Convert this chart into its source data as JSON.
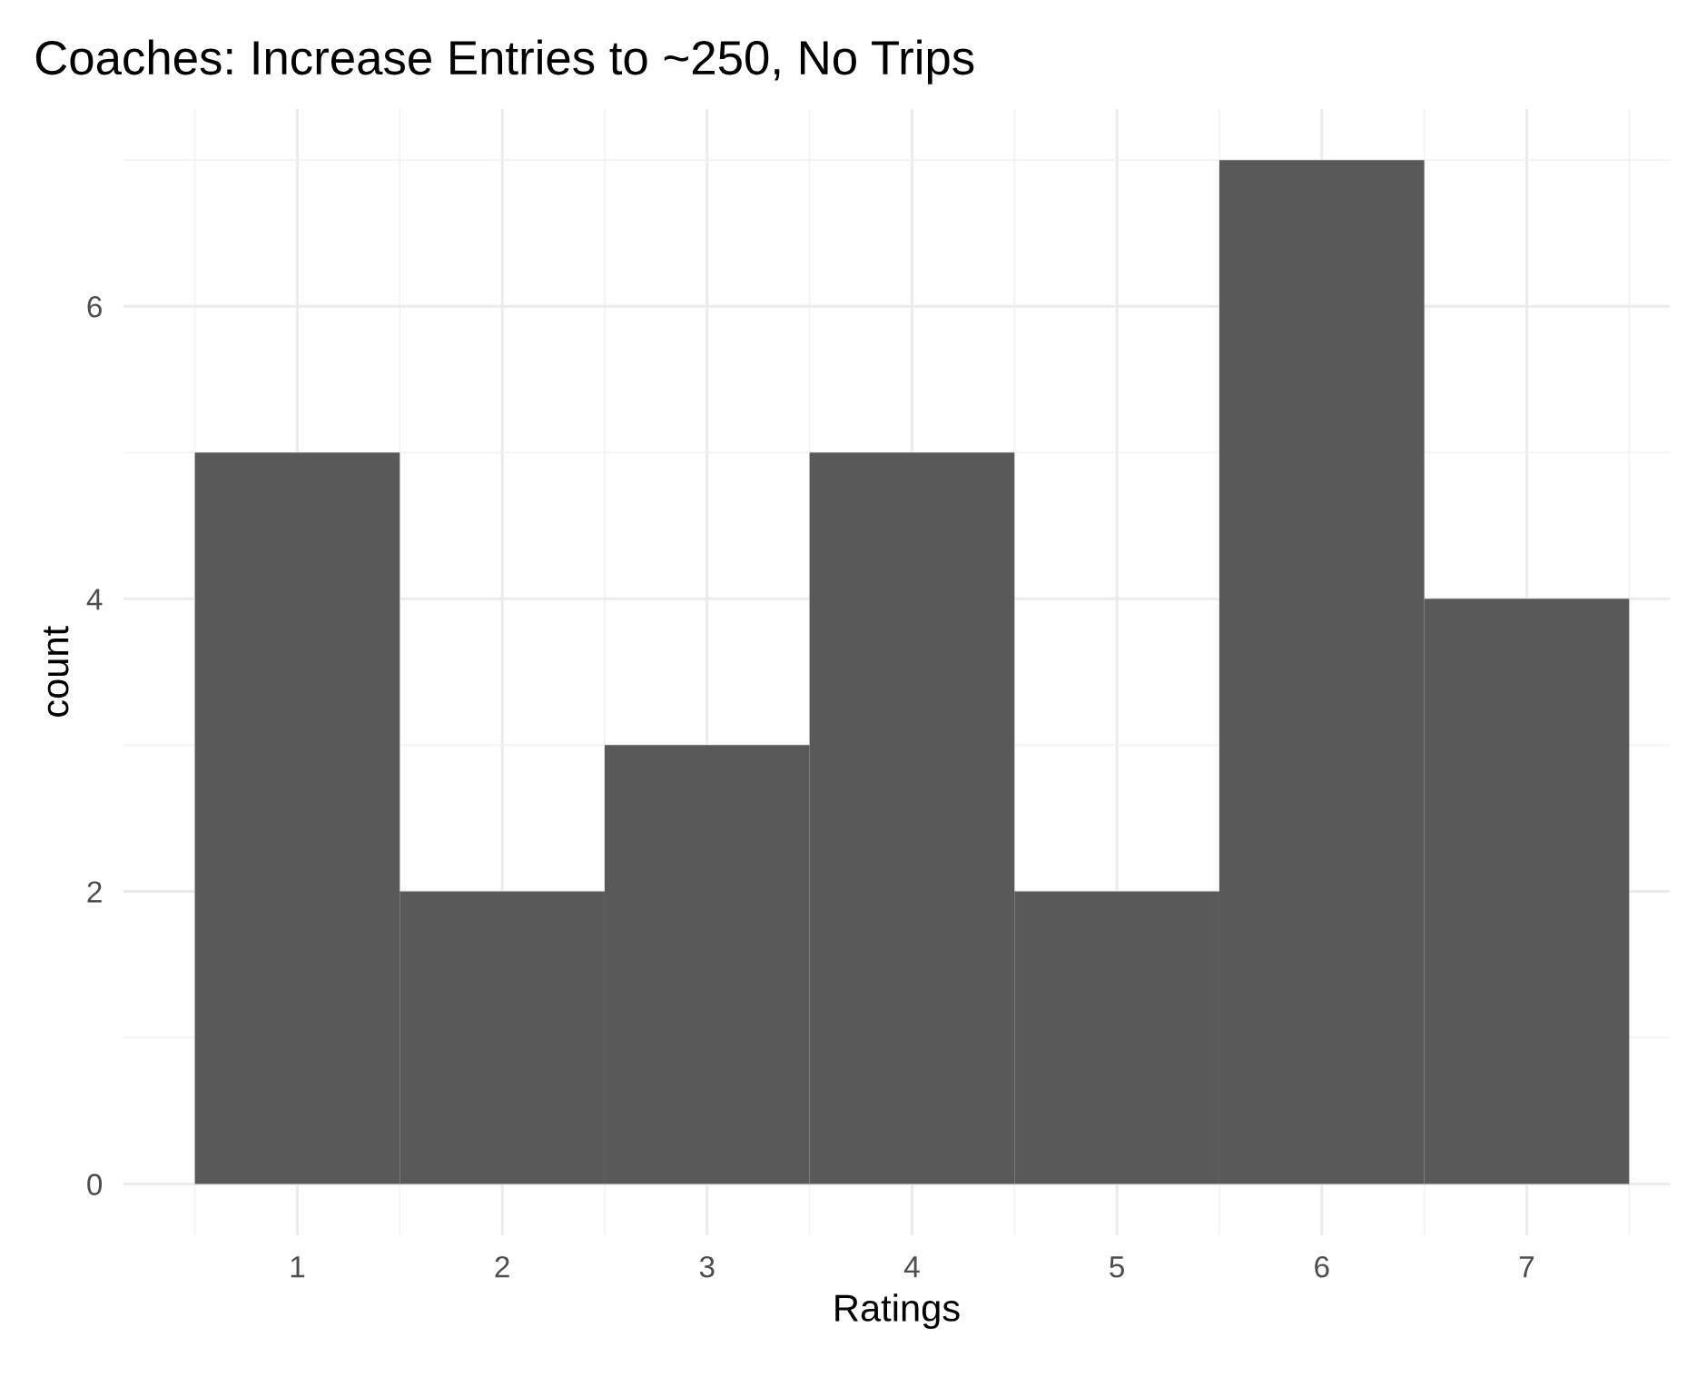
{
  "chart_data": {
    "type": "histogram",
    "title": "Coaches: Increase Entries to ~250, No Trips",
    "xlabel": "Ratings",
    "ylabel": "count",
    "bins": [
      0.5,
      1.5,
      2.5,
      3.5,
      4.5,
      5.5,
      6.5,
      7.5
    ],
    "values": [
      5,
      2,
      3,
      5,
      2,
      7,
      4
    ],
    "color": "#595959",
    "xlim": [
      0.15,
      7.7
    ],
    "xticks": [
      1,
      2,
      3,
      4,
      5,
      6,
      7
    ],
    "ylim": [
      -0.35,
      7.35
    ],
    "yticks": [
      0,
      2,
      4,
      6
    ],
    "grid": true,
    "legend": false
  }
}
